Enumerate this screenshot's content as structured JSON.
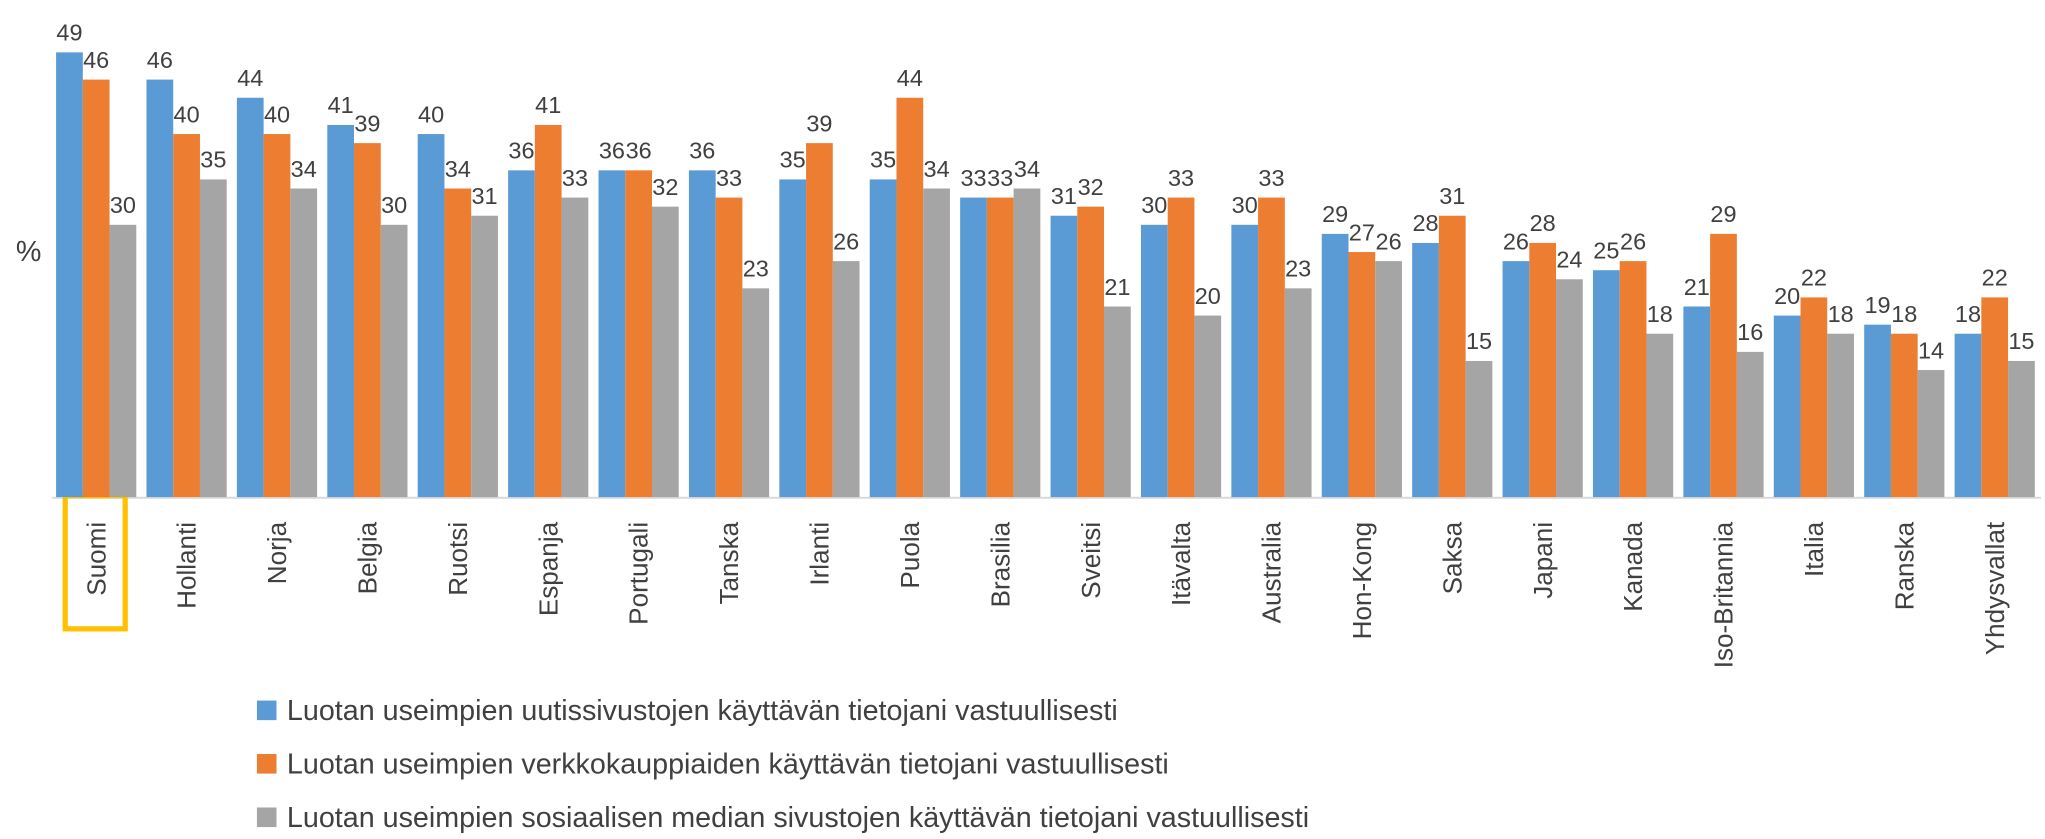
{
  "chart_data": {
    "type": "bar",
    "y_label": "%",
    "categories": [
      "Suomi",
      "Hollanti",
      "Norja",
      "Belgia",
      "Ruotsi",
      "Espanja",
      "Portugali",
      "Tanska",
      "Irlanti",
      "Puola",
      "Brasilia",
      "Sveitsi",
      "Itävalta",
      "Australia",
      "Hon-Kong",
      "Saksa",
      "Japani",
      "Kanada",
      "Iso-Britannia",
      "Italia",
      "Ranska",
      "Yhdysvallat"
    ],
    "series": [
      {
        "name": "Luotan useimpien uutissivustojen käyttävän tietojani vastuullisesti",
        "color": "#5b9bd5",
        "values": [
          49,
          46,
          44,
          41,
          40,
          36,
          36,
          36,
          35,
          35,
          33,
          31,
          30,
          30,
          29,
          28,
          26,
          25,
          21,
          20,
          19,
          18
        ]
      },
      {
        "name": "Luotan useimpien verkkokauppiaiden käyttävän tietojani vastuullisesti",
        "color": "#ed7d31",
        "values": [
          46,
          40,
          40,
          39,
          34,
          41,
          36,
          33,
          39,
          44,
          33,
          32,
          33,
          33,
          27,
          31,
          28,
          26,
          29,
          22,
          18,
          22
        ]
      },
      {
        "name": "Luotan useimpien sosiaalisen median sivustojen käyttävän tietojani vastuullisesti",
        "color": "#a5a5a5",
        "values": [
          30,
          35,
          34,
          30,
          31,
          33,
          32,
          23,
          26,
          34,
          34,
          21,
          20,
          23,
          26,
          15,
          24,
          18,
          16,
          18,
          14,
          15
        ]
      }
    ]
  }
}
